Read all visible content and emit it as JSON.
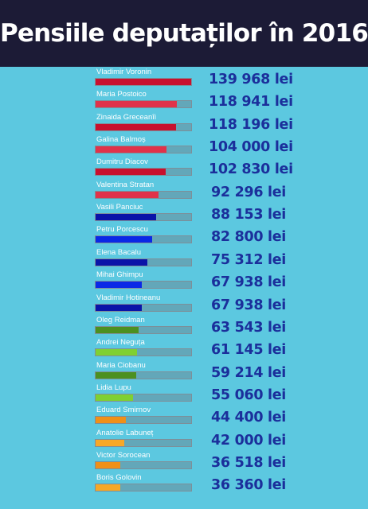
{
  "title": "Pensiile deputaților în 2016",
  "colors": {
    "header_bg": "#1c1b36",
    "page_bg": "#5cc8e0",
    "value_text": "#1b2f9b",
    "track": "#63a7b9"
  },
  "chart_data": {
    "type": "bar",
    "orientation": "horizontal",
    "xlim": [
      0,
      139968
    ],
    "categories": [
      "Vladimir Voronin",
      "Maria Postoico",
      "Zinaida Greceanîi",
      "Galina Balmoș",
      "Dumitru Diacov",
      "Valentina Stratan",
      "Vasili Panciuc",
      "Petru Porcescu",
      "Elena Bacalu",
      "Mihai Ghimpu",
      "Vladimir Hotineanu",
      "Oleg Reidman",
      "Andrei Neguța",
      "Maria Ciobanu",
      "Lidia Lupu",
      "Eduard Smirnov",
      "Anatolie Labuneț",
      "Victor Sorocean",
      "Boris Golovin"
    ],
    "values": [
      139968,
      118941,
      118196,
      104000,
      102830,
      92296,
      88153,
      82800,
      75312,
      67938,
      67938,
      63543,
      61145,
      59214,
      55060,
      44400,
      42000,
      36518,
      36360
    ],
    "value_labels": [
      "139 968 lei",
      "118 941 lei",
      "118 196 lei",
      "104 000 lei",
      "102 830 lei",
      "92 296 lei",
      "88 153 lei",
      "82 800 lei",
      "75 312 lei",
      "67 938 lei",
      "67 938 lei",
      "63 543 lei",
      "61 145 lei",
      "59 214 lei",
      "55 060 lei",
      "44 400 lei",
      "42 000 lei",
      "36 518 lei",
      "36 360 lei"
    ],
    "bar_colors": [
      "#c8102e",
      "#e0324a",
      "#c8102e",
      "#e0324a",
      "#c8102e",
      "#e0324a",
      "#0a14a8",
      "#0a28e6",
      "#0a14a8",
      "#0a28e6",
      "#0a14a8",
      "#4c9020",
      "#7fd032",
      "#4c9020",
      "#7fd032",
      "#f09018",
      "#f6a828",
      "#f09018",
      "#f6a828"
    ]
  }
}
